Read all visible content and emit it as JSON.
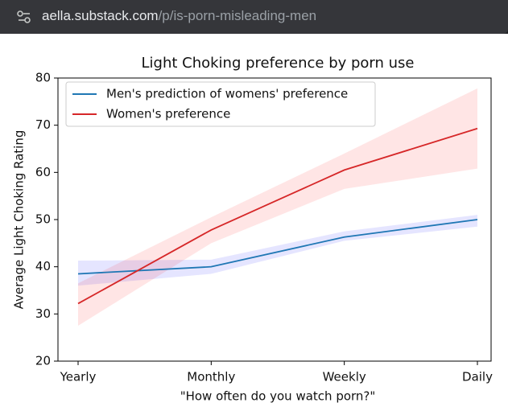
{
  "browser": {
    "domain": "aella.substack.com",
    "path": "/p/is-porn-misleading-men"
  },
  "chart_data": {
    "type": "line",
    "title": "Light Choking preference by porn use",
    "x_label": "\"How often do you watch porn?\"",
    "y_label": "Average Light Choking Rating",
    "categories": [
      "Yearly",
      "Monthly",
      "Weekly",
      "Daily"
    ],
    "ylim": [
      20,
      80
    ],
    "yticks": [
      20,
      30,
      40,
      50,
      60,
      70,
      80
    ],
    "legend": "upper left",
    "series": [
      {
        "name": "Men's prediction of womens' preference",
        "color": "#1f77b4",
        "band_color": "#0000ff",
        "values": [
          38.5,
          40,
          46.3,
          50
        ],
        "lower": [
          36,
          38.5,
          45.5,
          48.5
        ],
        "upper": [
          41.3,
          41.5,
          47.5,
          51
        ]
      },
      {
        "name": "Women's preference",
        "color": "#d62728",
        "band_color": "#ff0000",
        "values": [
          32.2,
          47.8,
          60.5,
          69.3
        ],
        "lower": [
          27.5,
          45,
          56.5,
          60.8
        ],
        "upper": [
          36.5,
          50.5,
          64,
          77.8
        ]
      }
    ]
  }
}
